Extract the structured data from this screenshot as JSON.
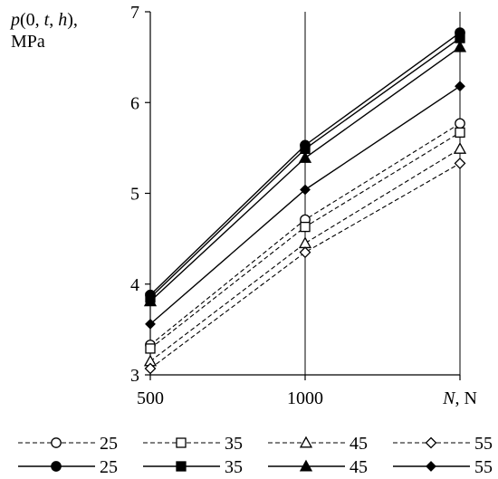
{
  "chart_data": {
    "type": "line",
    "title": "",
    "ylabel_line1": "p(0, t, h),",
    "ylabel_line2": "MPa",
    "xlabel_italic": "N",
    "xlabel_rest": ", N",
    "x": [
      500,
      1000,
      1500
    ],
    "x_tick_labels": [
      "500",
      "1000",
      ""
    ],
    "xlim": [
      500,
      1500
    ],
    "ylim": [
      3,
      7
    ],
    "y_ticks": [
      3,
      4,
      5,
      6,
      7
    ],
    "y_tick_labels": [
      "3",
      "4",
      "5",
      "6",
      "7"
    ],
    "grid": "vertical lines at each x tick",
    "legend_position": "bottom",
    "series": [
      {
        "name": "25",
        "style": "dashed",
        "marker": "circle-open",
        "values": [
          3.33,
          4.71,
          5.77
        ]
      },
      {
        "name": "35",
        "style": "dashed",
        "marker": "square-open",
        "values": [
          3.29,
          4.63,
          5.67
        ]
      },
      {
        "name": "45",
        "style": "dashed",
        "marker": "triangle-open",
        "values": [
          3.15,
          4.45,
          5.49
        ]
      },
      {
        "name": "55",
        "style": "dashed",
        "marker": "diamond-open",
        "values": [
          3.07,
          4.35,
          5.33
        ]
      },
      {
        "name": "25",
        "style": "solid",
        "marker": "circle-filled",
        "values": [
          3.88,
          5.53,
          6.77
        ]
      },
      {
        "name": "35",
        "style": "solid",
        "marker": "square-filled",
        "values": [
          3.85,
          5.49,
          6.71
        ]
      },
      {
        "name": "45",
        "style": "solid",
        "marker": "triangle-filled",
        "values": [
          3.81,
          5.39,
          6.61
        ]
      },
      {
        "name": "55",
        "style": "solid",
        "marker": "diamond-filled",
        "values": [
          3.56,
          5.04,
          6.18
        ]
      }
    ]
  },
  "colors": {
    "line": "#000000",
    "grid": "#000000",
    "background": "#ffffff"
  }
}
